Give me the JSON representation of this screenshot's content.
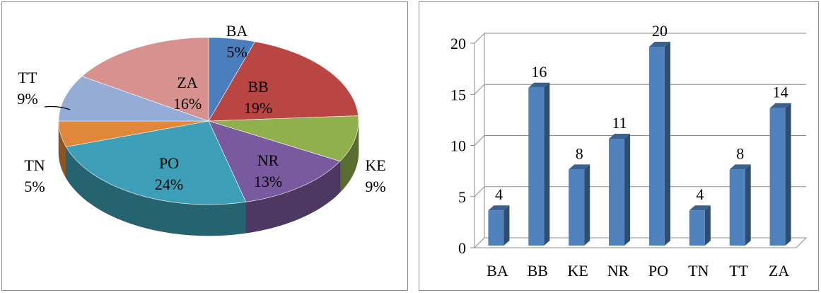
{
  "chart_data": [
    {
      "type": "pie",
      "style": "3d",
      "slices": [
        {
          "label": "BA",
          "percent": 5,
          "color": "#4a7dbb"
        },
        {
          "label": "BB",
          "percent": 19,
          "color": "#b94643"
        },
        {
          "label": "KE",
          "percent": 9,
          "color": "#8fb04d"
        },
        {
          "label": "NR",
          "percent": 13,
          "color": "#7a5a9e"
        },
        {
          "label": "PO",
          "percent": 24,
          "color": "#3c9fb7"
        },
        {
          "label": "TN",
          "percent": 5,
          "color": "#e0873b"
        },
        {
          "label": "TT",
          "percent": 9,
          "color": "#94acd6"
        },
        {
          "label": "ZA",
          "percent": 16,
          "color": "#d7918f"
        }
      ]
    },
    {
      "type": "bar",
      "style": "3d",
      "categories": [
        "BA",
        "BB",
        "KE",
        "NR",
        "PO",
        "TN",
        "TT",
        "ZA"
      ],
      "values": [
        4,
        16,
        8,
        11,
        20,
        4,
        8,
        14
      ],
      "yticks": [
        0,
        5,
        10,
        15,
        20
      ],
      "ylim": [
        0,
        20
      ],
      "grid": true,
      "color": "#4f81bd"
    }
  ]
}
